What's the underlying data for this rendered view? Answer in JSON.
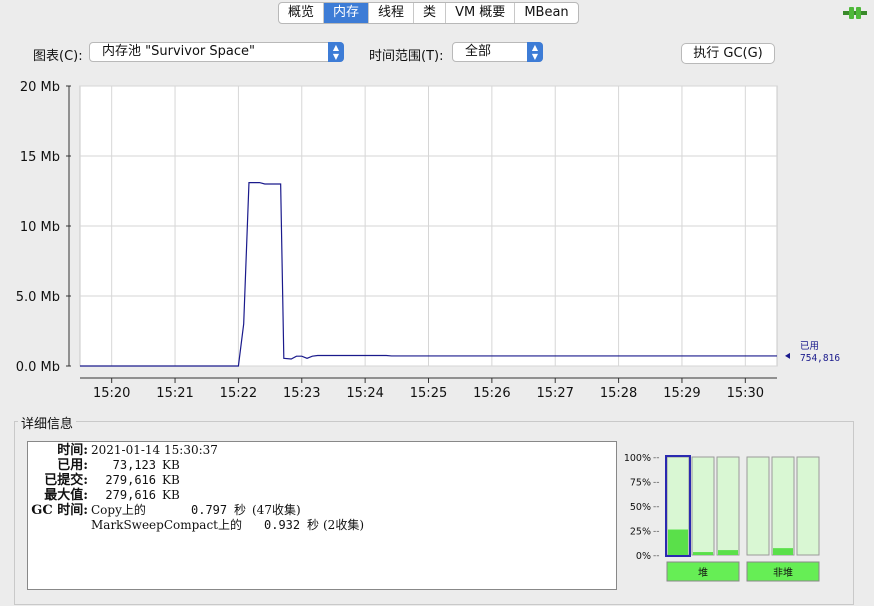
{
  "tabs": [
    "概览",
    "内存",
    "线程",
    "类",
    "VM 概要",
    "MBean"
  ],
  "active_tab": "内存",
  "icons": {
    "connection": "connection-plug-icon"
  },
  "controls": {
    "chart_label": "图表(C):",
    "chart_value": "内存池 \"Survivor Space\"",
    "range_label": "时间范围(T):",
    "range_value": "全部",
    "gc_button": "执行 GC(G)"
  },
  "chart_data": {
    "type": "line",
    "ylim": [
      0,
      20
    ],
    "y_ticks": [
      "0.0 Mb",
      "5.0 Mb",
      "10 Mb",
      "15 Mb",
      "20 Mb"
    ],
    "y_tick_values": [
      0,
      5,
      10,
      15,
      20
    ],
    "x_ticks": [
      "15:20",
      "15:21",
      "15:22",
      "15:23",
      "15:24",
      "15:25",
      "15:26",
      "15:27",
      "15:28",
      "15:29",
      "15:30"
    ],
    "x_range": [
      "15:19:30",
      "15:30:30"
    ],
    "grid": true,
    "line_color": "#1a1a8c",
    "series": [
      {
        "x": [
          "15:19:30",
          "15:22:00",
          "15:22:05",
          "15:22:10",
          "15:22:20",
          "15:22:25",
          "15:22:40",
          "15:22:43",
          "15:22:50",
          "15:22:55",
          "15:23:00",
          "15:23:05",
          "15:23:10",
          "15:23:15",
          "15:24:20",
          "15:24:25",
          "15:30:30"
        ],
        "y": [
          0.0,
          0.0,
          3.0,
          13.1,
          13.1,
          13.0,
          13.0,
          0.55,
          0.5,
          0.7,
          0.7,
          0.55,
          0.7,
          0.75,
          0.75,
          0.72,
          0.72
        ]
      }
    ],
    "end_label_title": "已用",
    "end_label_value": "754,816"
  },
  "details": {
    "title": "详细信息",
    "time_label": "时间:",
    "time_value": "2021-01-14 15:30:37",
    "used_label": "已用:",
    "used_value": "73,123",
    "committed_label": "已提交:",
    "committed_value": "279,616",
    "max_label": "最大值:",
    "max_value": "279,616",
    "unit": "KB",
    "gc_label": "GC 时间:",
    "gc1_name": "Copy上的",
    "gc1_time": "0.797",
    "gc1_unit": "秒",
    "gc1_count": "(47收集)",
    "gc2_name": "MarkSweepCompact上的",
    "gc2_time": "0.932",
    "gc2_unit": "秒",
    "gc2_count": "(2收集)"
  },
  "bar_panel": {
    "y_ticks": [
      "100%",
      "75%",
      "50%",
      "25%",
      "0%"
    ],
    "heap_label": "堆",
    "nonheap_label": "非堆",
    "heap_fills": [
      0.26,
      0.03,
      0.05
    ],
    "nonheap_fills": [
      0.0,
      0.07,
      0.0
    ],
    "selected_index": 0
  }
}
